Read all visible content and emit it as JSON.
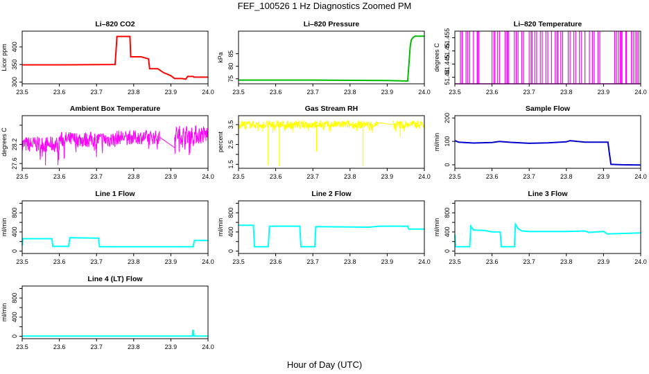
{
  "figure": {
    "title": "FEF_100526  1 Hz Diagnostics Zoomed PM",
    "xlabel": "Hour of Day (UTC)"
  },
  "chart_data": [
    {
      "type": "line",
      "title": "Li–820 CO2",
      "ylabel": "Licor ppm",
      "color": "#ff0000",
      "xlim": [
        23.5,
        24.0
      ],
      "ylim": [
        295,
        445
      ],
      "xticks": [
        "23.5",
        "23.6",
        "23.7",
        "23.8",
        "23.9",
        "24.0"
      ],
      "yticks": [
        300,
        350,
        400
      ],
      "x": [
        23.5,
        23.6,
        23.75,
        23.755,
        23.79,
        23.792,
        23.82,
        23.84,
        23.843,
        23.865,
        23.88,
        23.9,
        23.91,
        23.93,
        23.94,
        23.945,
        23.96,
        23.962,
        24.0
      ],
      "y": [
        349,
        349,
        350,
        430,
        430,
        372,
        372,
        366,
        338,
        338,
        327,
        318,
        310,
        310,
        308,
        316,
        316,
        314,
        314
      ]
    },
    {
      "type": "line",
      "title": "Li–820 Pressure",
      "ylabel": "kPa",
      "color": "#00bb00",
      "xlim": [
        23.5,
        24.0
      ],
      "ylim": [
        73,
        94
      ],
      "xticks": [
        "23.5",
        "23.6",
        "23.7",
        "23.8",
        "23.9",
        "24.0"
      ],
      "yticks": [
        75,
        80,
        85
      ],
      "x": [
        23.5,
        23.7,
        23.9,
        23.955,
        23.957,
        23.96,
        23.962,
        23.965,
        23.97,
        23.975,
        23.98,
        24.0
      ],
      "y": [
        74.5,
        74.5,
        74.3,
        74.1,
        78,
        84,
        88,
        90.5,
        91.5,
        92,
        92,
        92
      ]
    },
    {
      "type": "line",
      "title": "Li–820 Temperature",
      "ylabel": "degrees C",
      "color": "#ff00ff",
      "xlim": [
        23.5,
        24.0
      ],
      "ylim": [
        51.4375,
        51.4575
      ],
      "xticks": [
        "23.5",
        "23.6",
        "23.7",
        "23.8",
        "23.9",
        "24.0"
      ],
      "yticks": [
        51.44,
        51.445,
        51.45,
        51.455
      ],
      "high": 51.4575,
      "low": 51.4375,
      "spikes": [
        23.515,
        23.52,
        23.52,
        23.53,
        23.535,
        23.54,
        23.55,
        23.56,
        23.562,
        23.565,
        23.6,
        23.605,
        23.608,
        23.615,
        23.62,
        23.635,
        23.64,
        23.642,
        23.645,
        23.66,
        23.665,
        23.67,
        23.68,
        23.685,
        23.7,
        23.705,
        23.708,
        23.715,
        23.72,
        23.73,
        23.735,
        23.745,
        23.75,
        23.76,
        23.77,
        23.775,
        23.778,
        23.785,
        23.79,
        23.805,
        23.81,
        23.82,
        23.825,
        23.835,
        23.84,
        23.85,
        23.862,
        23.87,
        23.875,
        23.885,
        23.89,
        23.93,
        23.935,
        23.94,
        23.945,
        23.948,
        23.95,
        23.96,
        23.962,
        23.975,
        23.98,
        23.985,
        23.99,
        23.995
      ]
    },
    {
      "type": "line",
      "title": "Ambient Box Temperature",
      "ylabel": "degrees C",
      "color": "#ff00ff",
      "xlim": [
        23.5,
        24.0
      ],
      "ylim": [
        27.45,
        29.1
      ],
      "xticks": [
        "23.5",
        "23.6",
        "23.7",
        "23.8",
        "23.9",
        "24.0"
      ],
      "yticks": [
        27.6,
        28.2,
        28.8
      ],
      "yticklabels": [
        "27.6",
        "28.2",
        ""
      ],
      "noise": [
        {
          "x": [
            23.5,
            23.6
          ],
          "center": 28.2,
          "spread": 0.25,
          "spike_low": 27.5
        },
        {
          "x": [
            23.6,
            23.755
          ],
          "center": 28.35,
          "spread": 0.25,
          "spike_low": 27.75
        },
        {
          "x": [
            23.755,
            23.87
          ],
          "center": 28.42,
          "spread": 0.22,
          "spike_low": 28.0
        },
        {
          "x": [
            23.91,
            24.0
          ],
          "center": 28.5,
          "spread": 0.3,
          "spike_low": 27.85
        }
      ],
      "gap_line": {
        "x": [
          23.87,
          23.91
        ],
        "y": [
          28.42,
          28.1
        ]
      }
    },
    {
      "type": "line",
      "title": "Gas Stream RH",
      "ylabel": "percent",
      "color": "#ffff00",
      "xlim": [
        23.5,
        24.0
      ],
      "ylim": [
        1.3,
        3.95
      ],
      "xticks": [
        "23.5",
        "23.6",
        "23.7",
        "23.8",
        "23.9",
        "24.0"
      ],
      "yticks": [
        1.5,
        2.0,
        2.5,
        3.0,
        3.5
      ],
      "yticklabels": [
        "1.5",
        "",
        "2.5",
        "",
        "3.5"
      ],
      "noise": [
        {
          "x": [
            23.5,
            23.875
          ],
          "center": 3.5,
          "spread": 0.2,
          "spike_low": 3.05
        },
        {
          "x": [
            23.915,
            24.0
          ],
          "center": 3.5,
          "spread": 0.2,
          "spike_low": 3.1
        }
      ],
      "gap_line": {
        "x": [
          23.875,
          23.915
        ],
        "y": [
          3.6,
          3.5
        ]
      },
      "dips": [
        [
          23.58,
          1.45
        ],
        [
          23.61,
          1.4
        ],
        [
          23.71,
          2.15
        ],
        [
          23.835,
          1.4
        ],
        [
          23.935,
          2.9
        ]
      ]
    },
    {
      "type": "line",
      "title": "Sample Flow",
      "ylabel": "ml/min",
      "color": "#0000cc",
      "xlim": [
        23.5,
        24.0
      ],
      "ylim": [
        -15,
        210
      ],
      "xticks": [
        "23.5",
        "23.6",
        "23.7",
        "23.8",
        "23.9",
        "24.0"
      ],
      "yticks": [
        0,
        100,
        200
      ],
      "x": [
        23.5,
        23.51,
        23.55,
        23.6,
        23.62,
        23.65,
        23.7,
        23.75,
        23.8,
        23.81,
        23.85,
        23.9,
        23.912,
        23.915,
        23.92,
        23.95,
        24.0
      ],
      "y": [
        103,
        97,
        93,
        95,
        100,
        96,
        92,
        94,
        98,
        103,
        97,
        97,
        97,
        60,
        2,
        0,
        -1
      ]
    },
    {
      "type": "line",
      "title": "Line 1 Flow",
      "ylabel": "ml/min",
      "color": "#00ffff",
      "xlim": [
        23.5,
        24.0
      ],
      "ylim": [
        -50,
        1050
      ],
      "xticks": [
        "23.5",
        "23.6",
        "23.7",
        "23.8",
        "23.9",
        "24.0"
      ],
      "yticks": [
        0,
        200,
        400,
        600,
        800,
        1000
      ],
      "yticklabels": [
        "0",
        "",
        "400",
        "",
        "800",
        ""
      ],
      "x": [
        23.5,
        23.502,
        23.58,
        23.582,
        23.625,
        23.628,
        23.705,
        23.708,
        23.96,
        23.963,
        24.0
      ],
      "y": [
        120,
        260,
        260,
        100,
        100,
        280,
        270,
        90,
        90,
        220,
        220
      ]
    },
    {
      "type": "line",
      "title": "Line 2 Flow",
      "ylabel": "ml/min",
      "color": "#00ffff",
      "xlim": [
        23.5,
        24.0
      ],
      "ylim": [
        -50,
        1050
      ],
      "xticks": [
        "23.5",
        "23.6",
        "23.7",
        "23.8",
        "23.9",
        "24.0"
      ],
      "yticks": [
        0,
        200,
        400,
        600,
        800,
        1000
      ],
      "yticklabels": [
        "0",
        "",
        "400",
        "",
        "800",
        ""
      ],
      "x": [
        23.5,
        23.54,
        23.543,
        23.58,
        23.583,
        23.665,
        23.668,
        23.705,
        23.708,
        23.85,
        23.88,
        23.955,
        23.958,
        24.0
      ],
      "y": [
        540,
        540,
        90,
        90,
        520,
        520,
        90,
        90,
        510,
        500,
        520,
        520,
        460,
        460
      ]
    },
    {
      "type": "line",
      "title": "Line 3 Flow",
      "ylabel": "ml/min",
      "color": "#00ffff",
      "xlim": [
        23.5,
        24.0
      ],
      "ylim": [
        -50,
        1050
      ],
      "xticks": [
        "23.5",
        "23.6",
        "23.7",
        "23.8",
        "23.9",
        "24.0"
      ],
      "yticks": [
        0,
        200,
        400,
        600,
        800,
        1000
      ],
      "yticklabels": [
        "0",
        "",
        "400",
        "",
        "800",
        ""
      ],
      "x": [
        23.5,
        23.502,
        23.505,
        23.54,
        23.543,
        23.55,
        23.58,
        23.6,
        23.622,
        23.625,
        23.66,
        23.663,
        23.67,
        23.68,
        23.7,
        23.8,
        23.85,
        23.86,
        23.9,
        23.91,
        24.0
      ],
      "y": [
        340,
        90,
        90,
        90,
        520,
        440,
        430,
        400,
        400,
        90,
        90,
        560,
        470,
        420,
        410,
        410,
        420,
        390,
        410,
        360,
        380
      ]
    },
    {
      "type": "line",
      "title": "Line 4 (LT) Flow",
      "ylabel": "ml/min",
      "color": "#00ffff",
      "xlim": [
        23.5,
        24.0
      ],
      "ylim": [
        -50,
        1050
      ],
      "xticks": [
        "23.5",
        "23.6",
        "23.7",
        "23.8",
        "23.9",
        "24.0"
      ],
      "yticks": [
        0,
        200,
        400,
        600,
        800,
        1000
      ],
      "yticklabels": [
        "0",
        "",
        "400",
        "",
        "800",
        ""
      ],
      "x": [
        23.5,
        23.958,
        23.959,
        23.961,
        23.962,
        24.0
      ],
      "y": [
        5,
        5,
        120,
        120,
        5,
        5
      ]
    }
  ]
}
